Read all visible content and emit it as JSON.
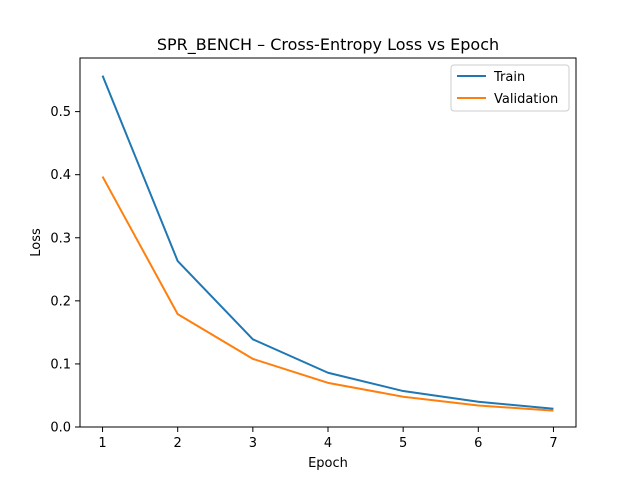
{
  "chart_data": {
    "type": "line",
    "title": "SPR_BENCH – Cross-Entropy Loss vs Epoch",
    "xlabel": "Epoch",
    "ylabel": "Loss",
    "x": [
      1,
      2,
      3,
      4,
      5,
      6,
      7
    ],
    "xlim": [
      0.7,
      7.3
    ],
    "ylim": [
      0,
      0.585
    ],
    "xticks": [
      1,
      2,
      3,
      4,
      5,
      6,
      7
    ],
    "yticks": [
      0.0,
      0.1,
      0.2,
      0.3,
      0.4,
      0.5
    ],
    "ytick_labels": [
      "0.0",
      "0.1",
      "0.2",
      "0.3",
      "0.4",
      "0.5"
    ],
    "grid": false,
    "legend": "top-right",
    "series": [
      {
        "name": "Train",
        "color": "#1f77b4",
        "values": [
          0.557,
          0.263,
          0.139,
          0.086,
          0.057,
          0.04,
          0.029
        ]
      },
      {
        "name": "Validation",
        "color": "#ff7f0e",
        "values": [
          0.397,
          0.179,
          0.108,
          0.07,
          0.048,
          0.034,
          0.026
        ]
      }
    ]
  }
}
